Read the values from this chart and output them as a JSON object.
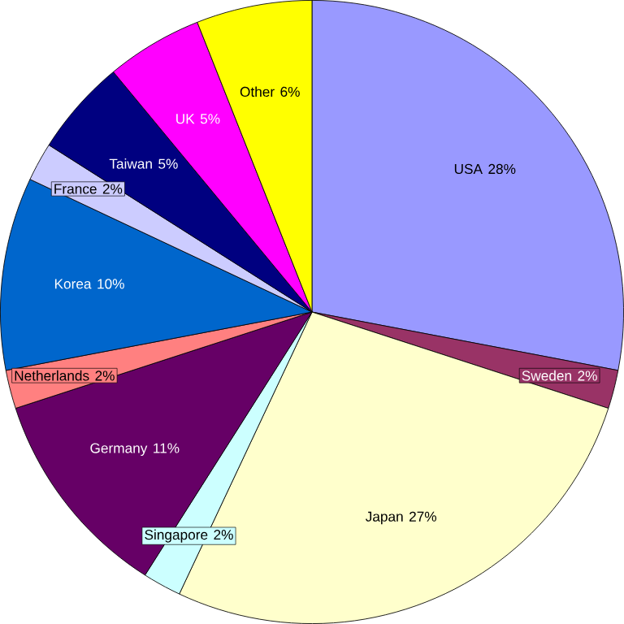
{
  "chart_data": {
    "type": "pie",
    "categories": [
      "USA",
      "Sweden",
      "Japan",
      "Singapore",
      "Germany",
      "Netherlands",
      "Korea",
      "France",
      "Taiwan",
      "UK",
      "Other"
    ],
    "values": [
      28,
      2,
      27,
      2,
      11,
      2,
      10,
      2,
      5,
      5,
      6
    ],
    "colors": [
      "#9999ff",
      "#993366",
      "#ffffcc",
      "#ccffff",
      "#660066",
      "#ff8080",
      "#0066cc",
      "#ccccff",
      "#000080",
      "#ff00ff",
      "#ffff00"
    ],
    "value_labels": [
      "28%",
      "2%",
      "27%",
      "2%",
      "11%",
      "2%",
      "10%",
      "2%",
      "5%",
      "5%",
      "6%"
    ]
  }
}
